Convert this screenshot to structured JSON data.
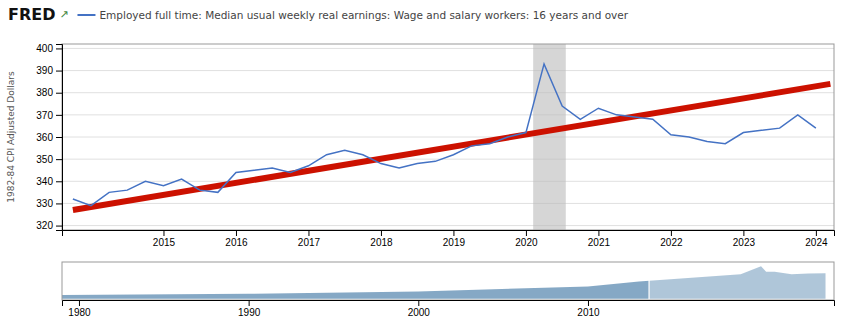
{
  "chart_data": [
    {
      "type": "line",
      "title": "FRED",
      "icon": "↗",
      "y_label": "1982-84 CPI Adjusted Dollars",
      "series": [
        {
          "name": "Employed full time: Median usual weekly real earnings: Wage and salary workers: 16 years and over",
          "color": "#4472c4",
          "x": [
            2013.75,
            2014.0,
            2014.25,
            2014.5,
            2014.75,
            2015.0,
            2015.25,
            2015.5,
            2015.75,
            2016.0,
            2016.25,
            2016.5,
            2016.75,
            2017.0,
            2017.25,
            2017.5,
            2017.75,
            2018.0,
            2018.25,
            2018.5,
            2018.75,
            2019.0,
            2019.25,
            2019.5,
            2019.75,
            2020.0,
            2020.25,
            2020.5,
            2020.75,
            2021.0,
            2021.25,
            2021.5,
            2021.75,
            2022.0,
            2022.25,
            2022.5,
            2022.75,
            2023.0,
            2023.25,
            2023.5,
            2023.75,
            2024.0
          ],
          "values": [
            332,
            329,
            335,
            336,
            340,
            338,
            341,
            336,
            335,
            344,
            345,
            346,
            344,
            347,
            352,
            354,
            352,
            348,
            346,
            348,
            349,
            352,
            356,
            357,
            360,
            362,
            393,
            374,
            368,
            373,
            370,
            369,
            368,
            361,
            360,
            358,
            357,
            362,
            363,
            364,
            370,
            364
          ]
        },
        {
          "color": "#cc1100",
          "x": [
            2013.75,
            2024.2
          ],
          "values": [
            327,
            384
          ]
        }
      ],
      "shaded_region": {
        "start": 2020.1,
        "end": 2020.55
      },
      "xlim": [
        2013.6,
        2024.25
      ],
      "xticks": [
        2015,
        2016,
        2017,
        2018,
        2019,
        2020,
        2021,
        2022,
        2023,
        2024
      ],
      "ylim": [
        318,
        402
      ],
      "yticks": [
        320,
        330,
        340,
        350,
        360,
        370,
        380,
        390,
        400
      ],
      "grid": true
    },
    {
      "type": "area",
      "color": "#7099bb",
      "x": [
        1979,
        1990,
        2000,
        2010,
        2013,
        2019,
        2020.2,
        2020.5,
        2021,
        2022,
        2023,
        2024
      ],
      "values": [
        275,
        280,
        290,
        310,
        330,
        360,
        393,
        370,
        370,
        360,
        363,
        364
      ],
      "baseline": 260,
      "highlight": {
        "start": 2013.6,
        "end": 2024.5
      },
      "xlim": [
        1979,
        2024.5
      ],
      "xticks": [
        1980,
        1990,
        2000,
        2010
      ],
      "ylim": [
        255,
        410
      ],
      "tick_labels": "x"
    }
  ]
}
